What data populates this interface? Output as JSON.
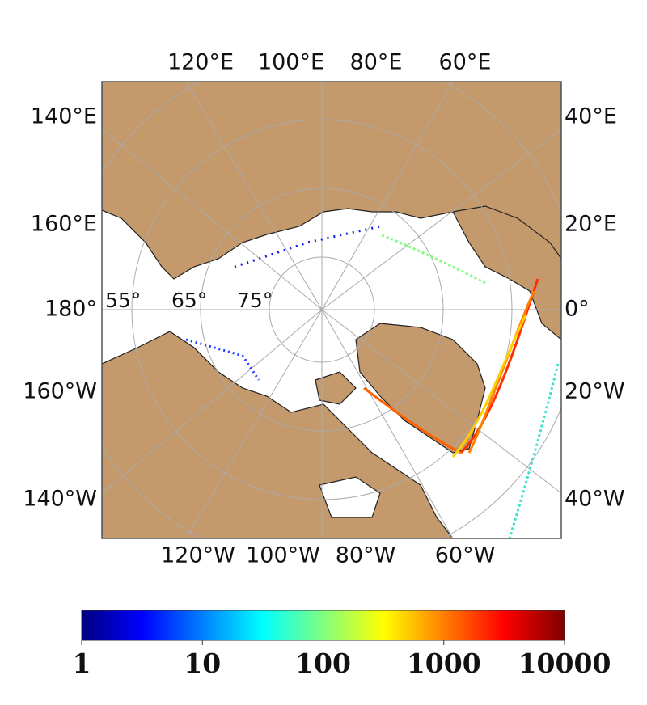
{
  "map": {
    "top_labels": [
      "120°E",
      "100°E",
      "80°E",
      "60°E"
    ],
    "left_labels": [
      "140°E",
      "160°E",
      "180°",
      "160°W",
      "140°W"
    ],
    "right_labels": [
      "40°E",
      "20°E",
      "0°",
      "20°W",
      "40°W"
    ],
    "bottom_labels": [
      "120°W",
      "100°W",
      "80°W",
      "60°W"
    ],
    "latitude_labels": [
      "55°",
      "65°",
      "75°"
    ]
  },
  "colorbar": {
    "type": "colorbar",
    "colormap": "jet",
    "log_scale": true,
    "lim": [
      1,
      10000
    ],
    "ticks": [
      1,
      10,
      100,
      1000,
      10000
    ]
  }
}
